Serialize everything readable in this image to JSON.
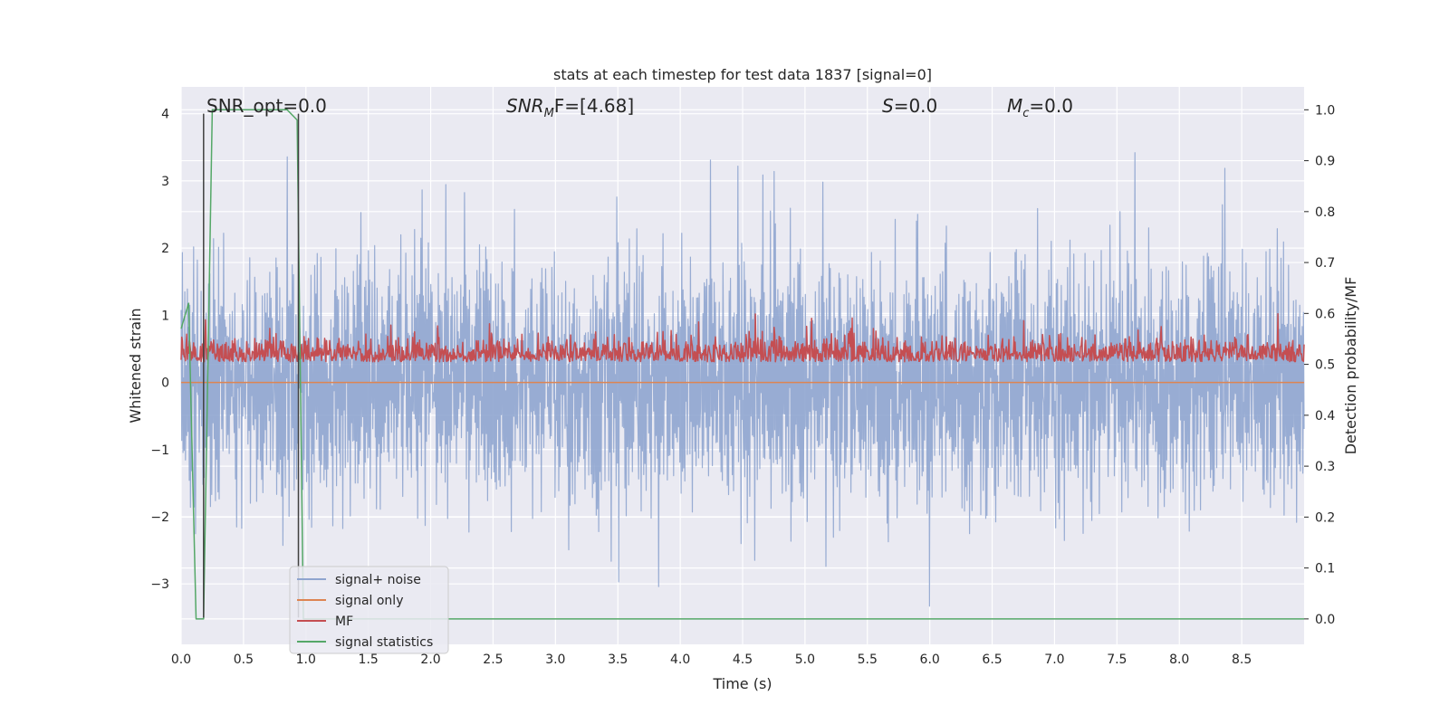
{
  "chart_data": {
    "type": "line",
    "title": "stats at each timestep for test data 1837 [signal=0]",
    "xlabel": "Time (s)",
    "ylabel": "Whitened strain",
    "ylabel_right": "Detection probability/MF",
    "xlim": [
      0.0,
      9.0
    ],
    "ylim": [
      -3.9,
      4.4
    ],
    "ylim_right": [
      -0.05,
      1.045
    ],
    "x_ticks": [
      0.0,
      0.5,
      1.0,
      1.5,
      2.0,
      2.5,
      3.0,
      3.5,
      4.0,
      4.5,
      5.0,
      5.5,
      6.0,
      6.5,
      7.0,
      7.5,
      8.0,
      8.5
    ],
    "x_tick_labels": [
      "0.0",
      "0.5",
      "1.0",
      "1.5",
      "2.0",
      "2.5",
      "3.0",
      "3.5",
      "4.0",
      "4.5",
      "5.0",
      "5.5",
      "6.0",
      "6.5",
      "7.0",
      "7.5",
      "8.0",
      "8.5"
    ],
    "y_ticks": [
      -3,
      -2,
      -1,
      0,
      1,
      2,
      3,
      4
    ],
    "y_tick_labels": [
      "−3",
      "−2",
      "−1",
      "0",
      "1",
      "2",
      "3",
      "4"
    ],
    "y_ticks_right": [
      0.0,
      0.1,
      0.2,
      0.3,
      0.4,
      0.5,
      0.6,
      0.7,
      0.8,
      0.9,
      1.0
    ],
    "y_tick_labels_right": [
      "0.0",
      "0.1",
      "0.2",
      "0.3",
      "0.4",
      "0.5",
      "0.6",
      "0.7",
      "0.8",
      "0.9",
      "1.0"
    ],
    "grid": true,
    "legend_position": "lower-left",
    "annotations": {
      "snr_opt": "SNR_opt=0.0",
      "snr_mf_main": "SNR",
      "snr_mf_sub": "M",
      "snr_mf_rest": "F=[4.68]",
      "s_main": "S",
      "s_rest": "=0.0",
      "mc_main": "M",
      "mc_sub": "c",
      "mc_rest": "=0.0"
    },
    "series": [
      {
        "name": "signal+ noise",
        "axis": "left",
        "color": "#8fa5cf",
        "sampling": {
          "x_start": 0.0,
          "x_end": 9.0,
          "points": 1800
        },
        "typical_range": [
          -1.3,
          1.3
        ],
        "extreme_range": [
          -3.55,
          3.55
        ]
      },
      {
        "name": "signal only",
        "axis": "left",
        "color": "#dd8452",
        "x": [
          0.0,
          9.0
        ],
        "y": [
          0.0,
          0.0
        ]
      },
      {
        "name": "MF",
        "axis": "right",
        "color": "#c44e52",
        "sampling": {
          "x_start": 0.0,
          "x_end": 9.0,
          "points": 1800
        },
        "typical_range": [
          0.48,
          0.53
        ],
        "extreme_range": [
          0.47,
          0.6
        ]
      },
      {
        "name": "signal statistics",
        "axis": "right",
        "color": "#55a868",
        "x": [
          0.0,
          0.06,
          0.12,
          0.18,
          0.25,
          0.85,
          0.93,
          0.98,
          1.0,
          9.0
        ],
        "y": [
          0.57,
          0.62,
          -0.0,
          0.0,
          1.0,
          1.0,
          0.98,
          0.0,
          0.0,
          0.0
        ]
      }
    ],
    "vertical_lines": [
      {
        "x": 0.18,
        "y_range": [
          -3.5,
          4.0
        ]
      },
      {
        "x": 0.94,
        "y_range": [
          -3.5,
          4.0
        ]
      }
    ]
  },
  "legend": {
    "items": [
      {
        "label": "signal+ noise",
        "color": "#8fa5cf"
      },
      {
        "label": "signal only",
        "color": "#dd8452"
      },
      {
        "label": "MF",
        "color": "#c44e52"
      },
      {
        "label": "signal statistics",
        "color": "#55a868"
      }
    ]
  },
  "colors": {
    "plot_background": "#eaeaf2",
    "grid": "#ffffff",
    "vline": "#404040"
  }
}
